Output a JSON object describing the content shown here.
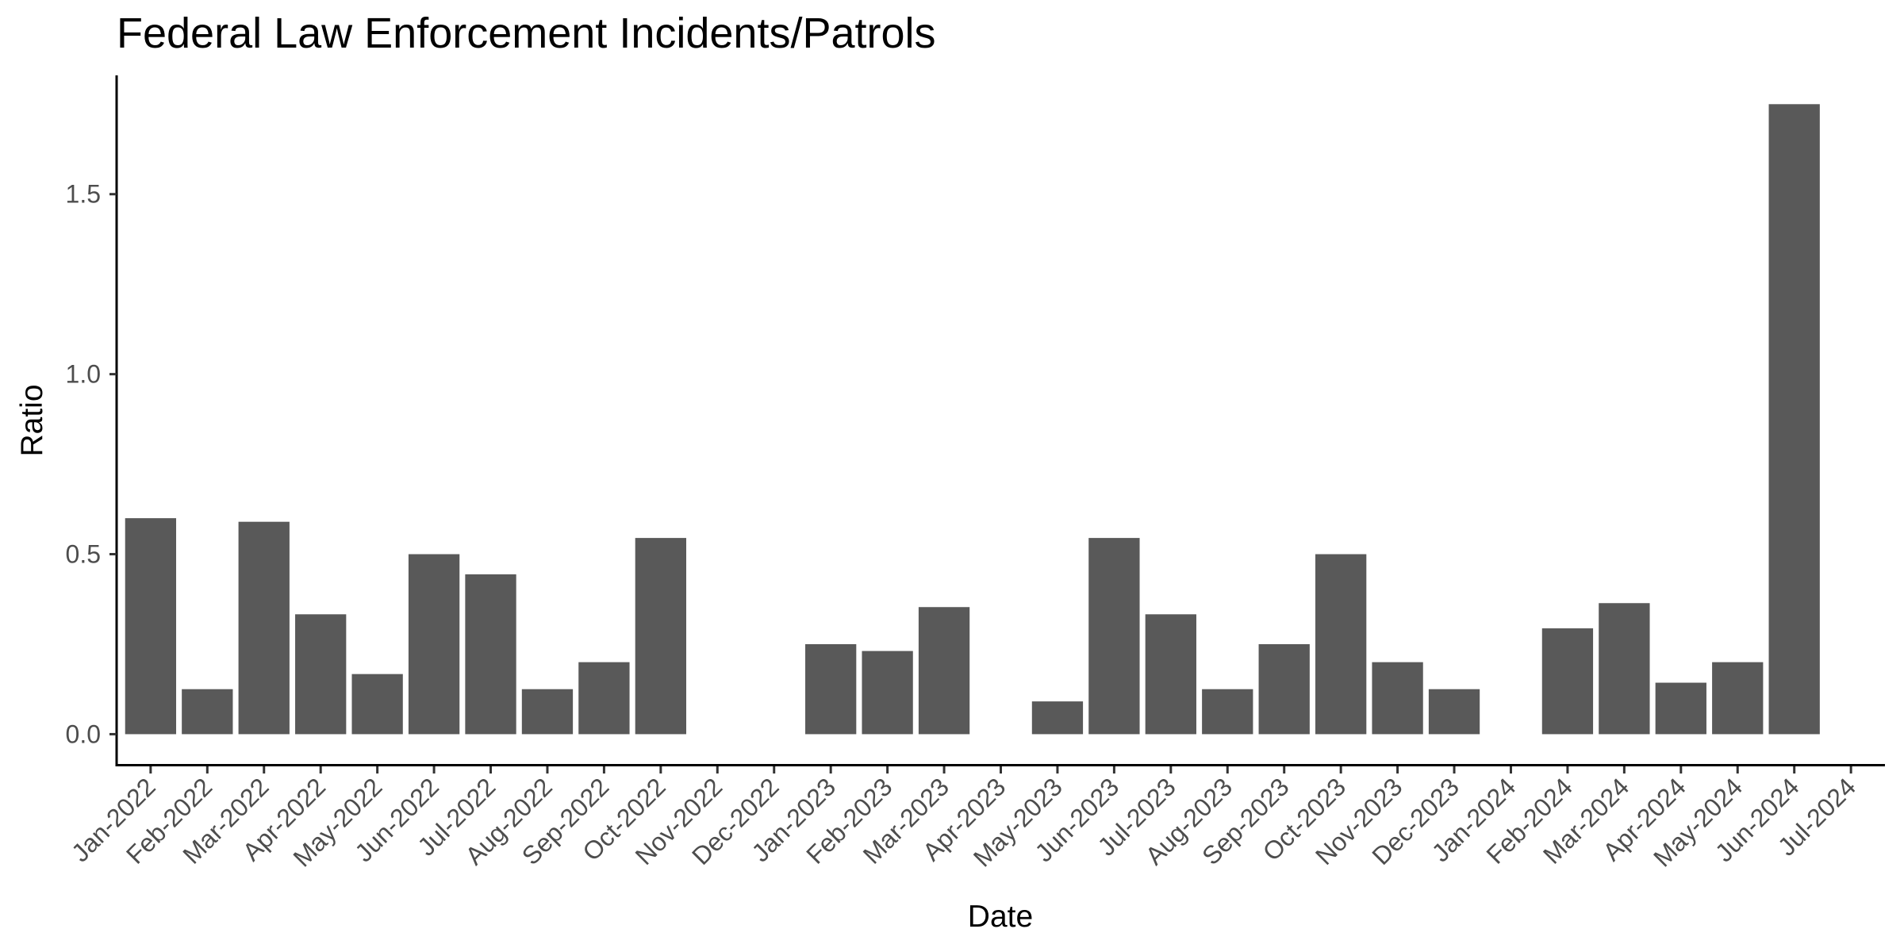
{
  "chart_data": {
    "type": "bar",
    "title": "Federal Law Enforcement Incidents/Patrols",
    "xlabel": "Date",
    "ylabel": "Ratio",
    "ylim": [
      -0.085,
      1.83
    ],
    "yticks": [
      0.0,
      0.5,
      1.0,
      1.5
    ],
    "ytick_labels": [
      "0.0",
      "0.5",
      "1.0",
      "1.5"
    ],
    "bar_color": "#595959",
    "grid": false,
    "categories": [
      "Jan-2022",
      "Feb-2022",
      "Mar-2022",
      "Apr-2022",
      "May-2022",
      "Jun-2022",
      "Jul-2022",
      "Aug-2022",
      "Sep-2022",
      "Oct-2022",
      "Nov-2022",
      "Dec-2022",
      "Jan-2023",
      "Feb-2023",
      "Mar-2023",
      "Apr-2023",
      "May-2023",
      "Jun-2023",
      "Jul-2023",
      "Aug-2023",
      "Sep-2023",
      "Oct-2023",
      "Nov-2023",
      "Dec-2023",
      "Jan-2024",
      "Feb-2024",
      "Mar-2024",
      "Apr-2024",
      "May-2024",
      "Jun-2024",
      "Jul-2024"
    ],
    "values": [
      0.6,
      0.125,
      0.59,
      0.333,
      0.167,
      0.5,
      0.444,
      0.125,
      0.2,
      0.545,
      null,
      null,
      0.25,
      0.231,
      0.353,
      null,
      0.091,
      0.545,
      0.333,
      0.125,
      0.25,
      0.5,
      0.2,
      0.125,
      null,
      0.294,
      0.364,
      0.143,
      0.2,
      1.75,
      null
    ]
  }
}
